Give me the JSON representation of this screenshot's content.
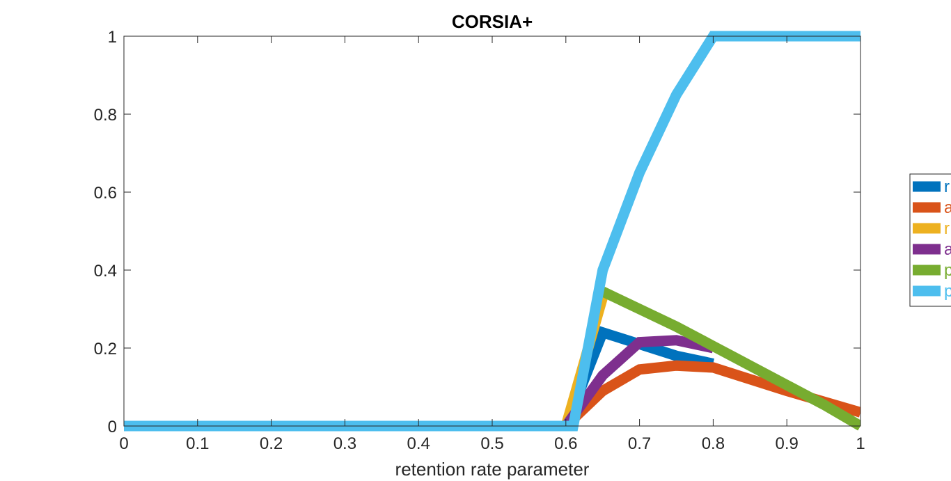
{
  "chart_data": {
    "type": "line",
    "title": "CORSIA+",
    "xlabel": "retention rate parameter",
    "ylabel": "",
    "xlim": [
      0,
      1
    ],
    "ylim": [
      0,
      1
    ],
    "xticks": [
      "0",
      "0.1",
      "0.2",
      "0.3",
      "0.4",
      "0.5",
      "0.6",
      "0.7",
      "0.8",
      "0.9",
      "1"
    ],
    "yticks": [
      "0",
      "0.2",
      "0.4",
      "0.6",
      "0.8",
      "1"
    ],
    "grid": false,
    "legend_position": "right",
    "series": [
      {
        "name": "r",
        "color": "#0072BD",
        "x": [
          0,
          0.6,
          0.65,
          0.7,
          0.75,
          0.8
        ],
        "y": [
          0,
          0,
          0.24,
          0.21,
          0.18,
          0.16
        ]
      },
      {
        "name": "a",
        "color": "#D95319",
        "x": [
          0,
          0.6,
          0.65,
          0.7,
          0.75,
          0.8,
          0.9,
          1
        ],
        "y": [
          0,
          0,
          0.09,
          0.145,
          0.155,
          0.15,
          0.09,
          0.035
        ]
      },
      {
        "name": "r",
        "color": "#EDB120",
        "x": [
          0,
          0.6,
          0.65
        ],
        "y": [
          0,
          0,
          0.33
        ]
      },
      {
        "name": "a",
        "color": "#7E2F8E",
        "x": [
          0,
          0.6,
          0.65,
          0.7,
          0.75,
          0.8
        ],
        "y": [
          0,
          0,
          0.13,
          0.215,
          0.22,
          0.2
        ]
      },
      {
        "name": "p",
        "color": "#77AC30",
        "x": [
          0.65,
          0.7,
          0.75,
          0.8,
          0.85,
          0.9,
          0.95,
          1
        ],
        "y": [
          0.345,
          0.3,
          0.255,
          0.205,
          0.155,
          0.105,
          0.055,
          0.0
        ]
      },
      {
        "name": "p",
        "color": "#4DBEEE",
        "x": [
          0,
          0.6,
          0.61,
          0.65,
          0.7,
          0.75,
          0.8,
          0.85,
          0.9,
          0.95,
          1
        ],
        "y": [
          0,
          0,
          0,
          0.4,
          0.65,
          0.85,
          1,
          1,
          1,
          1,
          1
        ]
      }
    ]
  }
}
